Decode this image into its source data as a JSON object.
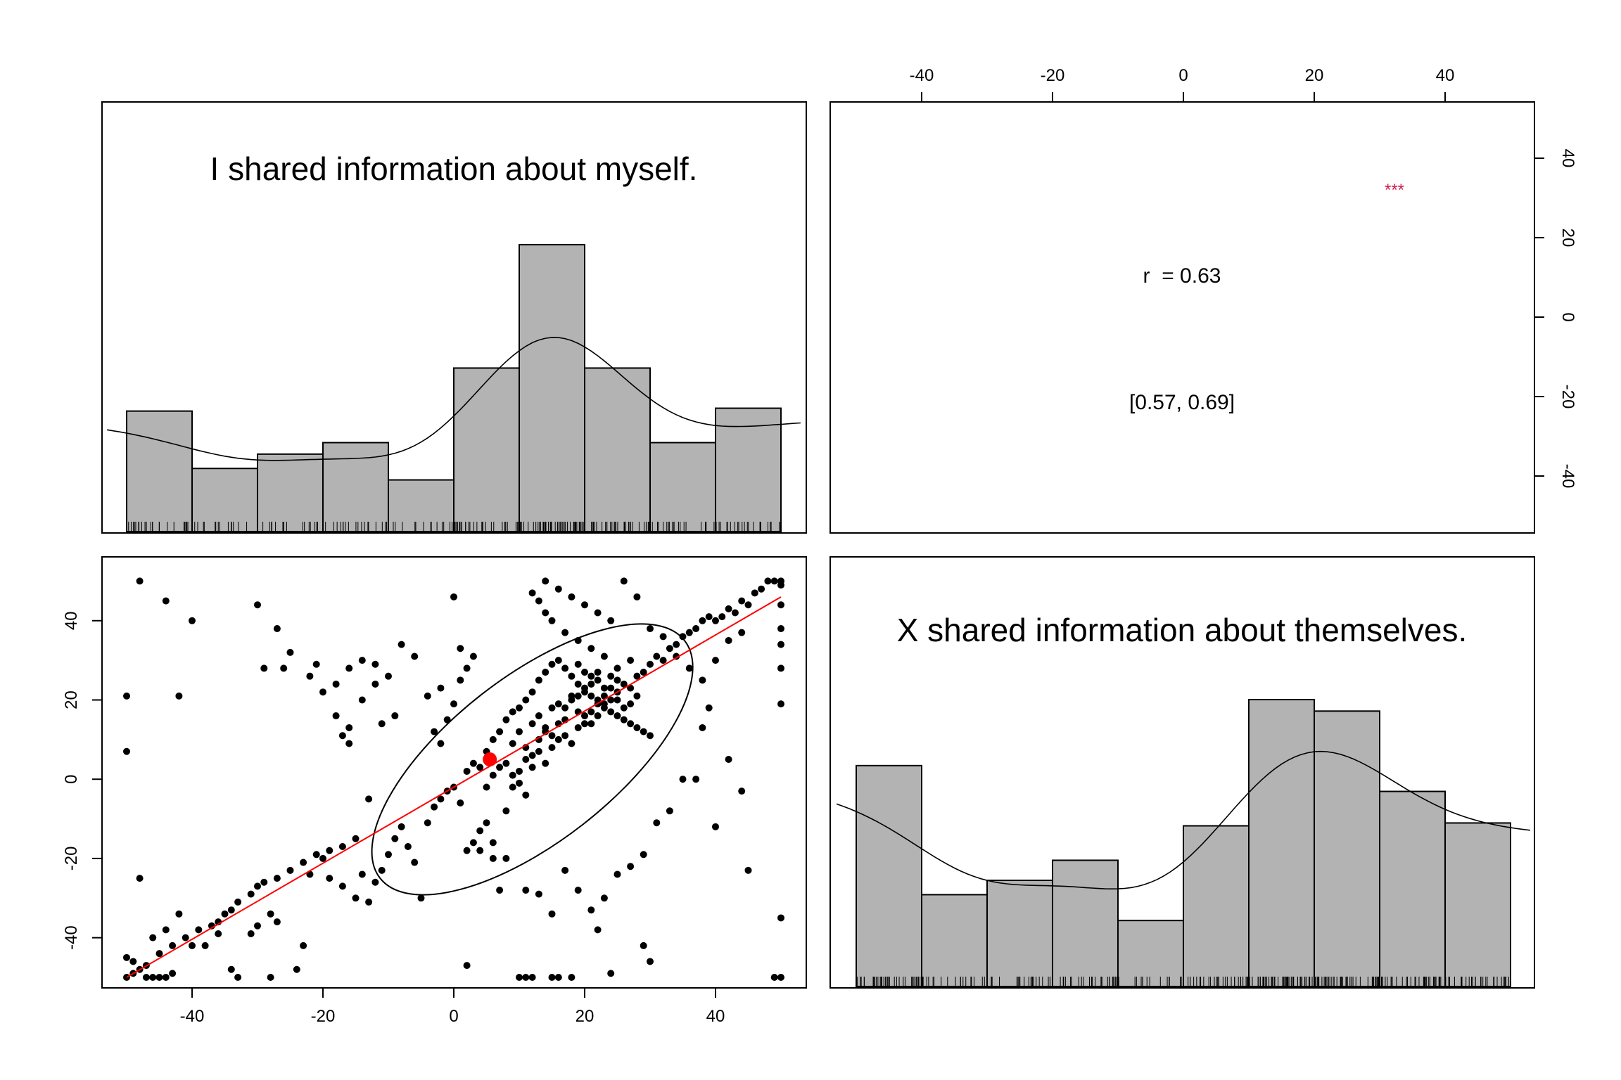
{
  "chart_data": [
    {
      "type": "histogram",
      "panel": "top-left (diagonal)",
      "variable": "I shared information about myself.",
      "title": "I shared information about myself.",
      "bin_edges": [
        -50,
        -40,
        -30,
        -20,
        -10,
        0,
        10,
        20,
        30,
        40,
        50
      ],
      "relative_heights": [
        0.42,
        0.22,
        0.27,
        0.31,
        0.18,
        0.57,
        1.0,
        0.57,
        0.31,
        0.43
      ],
      "density_curve": true,
      "rug": true,
      "fill": "#b3b3b3"
    },
    {
      "type": "text",
      "panel": "top-right (upper triangle)",
      "correlation_label": "r  = 0.63",
      "ci_label": "[0.57, 0.69]",
      "significance_label": "***",
      "significance_color": "#cc1f4a",
      "x_ticks": [
        "-40",
        "-20",
        "0",
        "20",
        "40"
      ],
      "y_ticks": [
        "-40",
        "-20",
        "0",
        "20",
        "40"
      ]
    },
    {
      "type": "scatter",
      "panel": "bottom-left (lower triangle)",
      "xlim": [
        -52,
        52
      ],
      "ylim": [
        -52,
        52
      ],
      "x_ticks": [
        "-40",
        "-20",
        "0",
        "20",
        "40"
      ],
      "y_ticks": [
        "-40",
        "-20",
        "0",
        "20",
        "40"
      ],
      "regression_line": {
        "from": [
          -50,
          -50
        ],
        "to": [
          50,
          46
        ],
        "color": "#ff0000"
      },
      "mean_point": {
        "x": 5.5,
        "y": 5,
        "color": "#ff0000"
      },
      "ellipse": {
        "cx": 12,
        "cy": 5,
        "semi_major": 36,
        "semi_minor": 18,
        "angle_deg": 38
      },
      "points": [
        [
          -50,
          -50
        ],
        [
          -49,
          -49
        ],
        [
          -49,
          -46
        ],
        [
          -50,
          -45
        ],
        [
          -48,
          -48
        ],
        [
          -47,
          -50
        ],
        [
          -46,
          -50
        ],
        [
          -45,
          -50
        ],
        [
          -44,
          -50
        ],
        [
          -43,
          -49
        ],
        [
          -47,
          -47
        ],
        [
          -45,
          -44
        ],
        [
          -43,
          -42
        ],
        [
          -41,
          -40
        ],
        [
          -39,
          -38
        ],
        [
          -37,
          -37
        ],
        [
          -36,
          -36
        ],
        [
          -35,
          -34
        ],
        [
          -34,
          -33
        ],
        [
          -33,
          -31
        ],
        [
          -31,
          -29
        ],
        [
          -30,
          -27
        ],
        [
          -29,
          -26
        ],
        [
          -27,
          -25
        ],
        [
          -25,
          -23
        ],
        [
          -23,
          -21
        ],
        [
          -21,
          -19
        ],
        [
          -19,
          -18
        ],
        [
          -17,
          -17
        ],
        [
          -15,
          -15
        ],
        [
          -50,
          21
        ],
        [
          -50,
          7
        ],
        [
          -48,
          50
        ],
        [
          -44,
          45
        ],
        [
          -42,
          21
        ],
        [
          -40,
          40
        ],
        [
          -30,
          44
        ],
        [
          -27,
          38
        ],
        [
          -25,
          32
        ],
        [
          -26,
          28
        ],
        [
          -29,
          28
        ],
        [
          -21,
          29
        ],
        [
          -22,
          26
        ],
        [
          -18,
          24
        ],
        [
          -16,
          28
        ],
        [
          -14,
          30
        ],
        [
          -12,
          29
        ],
        [
          -10,
          26
        ],
        [
          -17,
          11
        ],
        [
          -16,
          13
        ],
        [
          -14,
          20
        ],
        [
          -12,
          24
        ],
        [
          -11,
          14
        ],
        [
          -9,
          16
        ],
        [
          -8,
          34
        ],
        [
          -6,
          31
        ],
        [
          -4,
          21
        ],
        [
          -2,
          23
        ],
        [
          0,
          46
        ],
        [
          1,
          33
        ],
        [
          3,
          31
        ],
        [
          -48,
          -25
        ],
        [
          -46,
          -40
        ],
        [
          -44,
          -38
        ],
        [
          -42,
          -34
        ],
        [
          -40,
          -42
        ],
        [
          -38,
          -42
        ],
        [
          -36,
          -39
        ],
        [
          -34,
          -48
        ],
        [
          -33,
          -50
        ],
        [
          -31,
          -39
        ],
        [
          -30,
          -37
        ],
        [
          -28,
          -34
        ],
        [
          -27,
          -36
        ],
        [
          -28,
          -50
        ],
        [
          -23,
          -42
        ],
        [
          -24,
          -48
        ],
        [
          -22,
          -24
        ],
        [
          -20,
          -20
        ],
        [
          -19,
          -25
        ],
        [
          -17,
          -27
        ],
        [
          -15,
          -30
        ],
        [
          -14,
          -24
        ],
        [
          -13,
          -31
        ],
        [
          -12,
          -26
        ],
        [
          -11,
          -23
        ],
        [
          -10,
          -19
        ],
        [
          -9,
          -15
        ],
        [
          -8,
          -12
        ],
        [
          -7,
          -17
        ],
        [
          -6,
          -21
        ],
        [
          -5,
          -30
        ],
        [
          -4,
          -11
        ],
        [
          -3,
          -7
        ],
        [
          -2,
          -5
        ],
        [
          -1,
          -3
        ],
        [
          0,
          -2
        ],
        [
          1,
          -6
        ],
        [
          2,
          -18
        ],
        [
          3,
          -16
        ],
        [
          4,
          -13
        ],
        [
          5,
          -11
        ],
        [
          6,
          -20
        ],
        [
          7,
          -28
        ],
        [
          8,
          -8
        ],
        [
          9,
          -2
        ],
        [
          10,
          2
        ],
        [
          11,
          5
        ],
        [
          12,
          3
        ],
        [
          13,
          7
        ],
        [
          14,
          4
        ],
        [
          15,
          8
        ],
        [
          16,
          10
        ],
        [
          17,
          11
        ],
        [
          18,
          9
        ],
        [
          19,
          13
        ],
        [
          20,
          14
        ],
        [
          21,
          17
        ],
        [
          22,
          16
        ],
        [
          23,
          19
        ],
        [
          24,
          20
        ],
        [
          25,
          22
        ],
        [
          26,
          24
        ],
        [
          27,
          23
        ],
        [
          28,
          26
        ],
        [
          29,
          27
        ],
        [
          30,
          29
        ],
        [
          31,
          31
        ],
        [
          32,
          30
        ],
        [
          33,
          33
        ],
        [
          34,
          34
        ],
        [
          35,
          36
        ],
        [
          36,
          37
        ],
        [
          37,
          38
        ],
        [
          38,
          40
        ],
        [
          39,
          41
        ],
        [
          40,
          40
        ],
        [
          41,
          41
        ],
        [
          42,
          43
        ],
        [
          43,
          42
        ],
        [
          44,
          45
        ],
        [
          45,
          44
        ],
        [
          46,
          47
        ],
        [
          47,
          48
        ],
        [
          48,
          50
        ],
        [
          49,
          50
        ],
        [
          50,
          50
        ],
        [
          50,
          49
        ],
        [
          50,
          44
        ],
        [
          50,
          38
        ],
        [
          50,
          34
        ],
        [
          50,
          28
        ],
        [
          50,
          19
        ],
        [
          50,
          -35
        ],
        [
          49,
          -50
        ],
        [
          50,
          -50
        ],
        [
          45,
          -23
        ],
        [
          44,
          -3
        ],
        [
          42,
          5
        ],
        [
          40,
          -12
        ],
        [
          39,
          18
        ],
        [
          38,
          13
        ],
        [
          37,
          0
        ],
        [
          35,
          0
        ],
        [
          33,
          -8
        ],
        [
          31,
          -11
        ],
        [
          29,
          -19
        ],
        [
          27,
          -22
        ],
        [
          25,
          -24
        ],
        [
          23,
          -30
        ],
        [
          21,
          -33
        ],
        [
          19,
          -28
        ],
        [
          17,
          -23
        ],
        [
          15,
          -34
        ],
        [
          13,
          -29
        ],
        [
          11,
          -28
        ],
        [
          10,
          -50
        ],
        [
          11,
          -50
        ],
        [
          12,
          -50
        ],
        [
          15,
          -50
        ],
        [
          16,
          -50
        ],
        [
          18,
          -50
        ],
        [
          22,
          -38
        ],
        [
          24,
          -49
        ],
        [
          30,
          -46
        ],
        [
          29,
          -42
        ],
        [
          2,
          -47
        ],
        [
          4,
          -18
        ],
        [
          6,
          -16
        ],
        [
          8,
          -20
        ],
        [
          5,
          7
        ],
        [
          6,
          10
        ],
        [
          7,
          12
        ],
        [
          8,
          15
        ],
        [
          9,
          17
        ],
        [
          10,
          18
        ],
        [
          11,
          20
        ],
        [
          12,
          22
        ],
        [
          13,
          25
        ],
        [
          14,
          27
        ],
        [
          15,
          29
        ],
        [
          16,
          30
        ],
        [
          17,
          28
        ],
        [
          18,
          26
        ],
        [
          19,
          24
        ],
        [
          20,
          22
        ],
        [
          21,
          21
        ],
        [
          22,
          19
        ],
        [
          23,
          18
        ],
        [
          24,
          17
        ],
        [
          25,
          16
        ],
        [
          26,
          15
        ],
        [
          27,
          14
        ],
        [
          28,
          13
        ],
        [
          29,
          12
        ],
        [
          30,
          11
        ],
        [
          27,
          30
        ],
        [
          25,
          28
        ],
        [
          23,
          31
        ],
        [
          21,
          33
        ],
        [
          19,
          35
        ],
        [
          17,
          37
        ],
        [
          15,
          40
        ],
        [
          14,
          42
        ],
        [
          13,
          45
        ],
        [
          12,
          47
        ],
        [
          14,
          50
        ],
        [
          16,
          48
        ],
        [
          18,
          46
        ],
        [
          20,
          44
        ],
        [
          22,
          42
        ],
        [
          24,
          40
        ],
        [
          26,
          50
        ],
        [
          28,
          46
        ],
        [
          30,
          38
        ],
        [
          32,
          36
        ],
        [
          34,
          31
        ],
        [
          36,
          28
        ],
        [
          38,
          25
        ],
        [
          40,
          30
        ],
        [
          42,
          35
        ],
        [
          44,
          37
        ],
        [
          12,
          14
        ],
        [
          13,
          16
        ],
        [
          14,
          12
        ],
        [
          15,
          18
        ],
        [
          16,
          19
        ],
        [
          17,
          15
        ],
        [
          18,
          21
        ],
        [
          19,
          17
        ],
        [
          20,
          16
        ],
        [
          21,
          14
        ],
        [
          22,
          25
        ],
        [
          23,
          23
        ],
        [
          24,
          26
        ],
        [
          25,
          20
        ],
        [
          9,
          9
        ],
        [
          10,
          12
        ],
        [
          11,
          8
        ],
        [
          12,
          6
        ],
        [
          13,
          10
        ],
        [
          14,
          13
        ],
        [
          15,
          11
        ],
        [
          16,
          14
        ],
        [
          17,
          18
        ],
        [
          18,
          20
        ],
        [
          19,
          21
        ],
        [
          20,
          23
        ],
        [
          21,
          26
        ],
        [
          22,
          27
        ],
        [
          7,
          3
        ],
        [
          8,
          4
        ],
        [
          9,
          1
        ],
        [
          10,
          -1
        ],
        [
          11,
          -4
        ],
        [
          6,
          1
        ],
        [
          5,
          -2
        ],
        [
          4,
          3
        ],
        [
          3,
          4
        ],
        [
          2,
          2
        ],
        [
          26,
          18
        ],
        [
          27,
          19
        ],
        [
          28,
          21
        ],
        [
          25,
          25
        ],
        [
          24,
          23
        ],
        [
          23,
          21
        ],
        [
          22,
          20
        ],
        [
          21,
          24
        ],
        [
          20,
          27
        ],
        [
          19,
          29
        ],
        [
          0,
          19
        ],
        [
          -1,
          15
        ],
        [
          -2,
          9
        ],
        [
          -3,
          12
        ],
        [
          1,
          25
        ],
        [
          2,
          28
        ],
        [
          -20,
          22
        ],
        [
          -18,
          16
        ],
        [
          -16,
          9
        ],
        [
          -13,
          -5
        ]
      ]
    },
    {
      "type": "histogram",
      "panel": "bottom-right (diagonal)",
      "variable": "X shared information about themselves.",
      "title": "X shared information about themselves.",
      "bin_edges": [
        -50,
        -40,
        -30,
        -20,
        -10,
        0,
        10,
        20,
        30,
        40,
        50
      ],
      "relative_heights": [
        0.77,
        0.32,
        0.37,
        0.44,
        0.23,
        0.56,
        1.0,
        0.96,
        0.68,
        0.57
      ],
      "density_curve": true,
      "rug": true,
      "fill": "#b3b3b3"
    }
  ]
}
